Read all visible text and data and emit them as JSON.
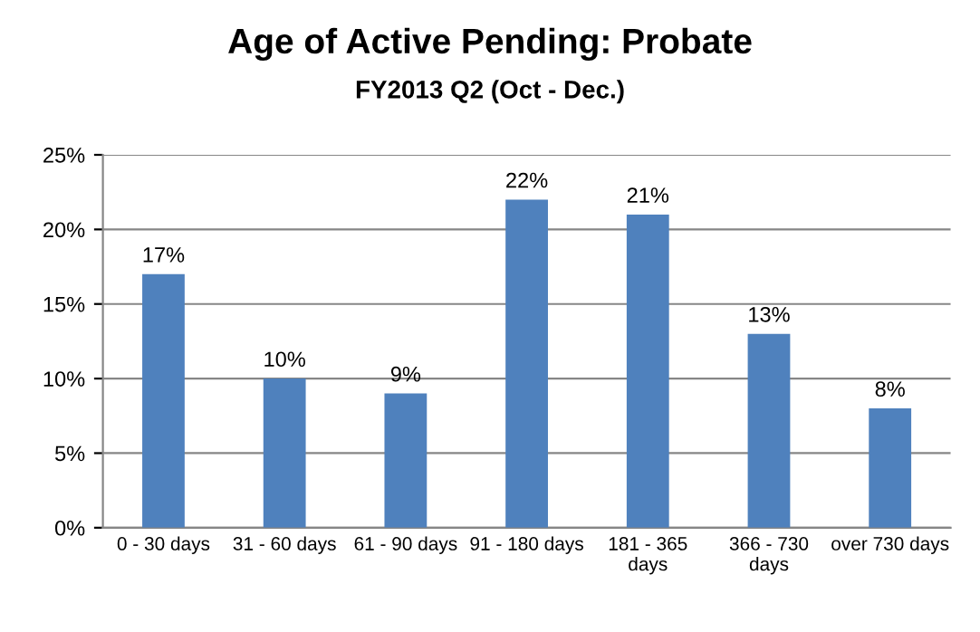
{
  "chart_data": {
    "type": "bar",
    "title": "Age of Active Pending: Probate",
    "subtitle": "FY2013 Q2 (Oct - Dec.)",
    "categories": [
      "0 - 30 days",
      "31 - 60 days",
      "61 - 90 days",
      "91 - 180 days",
      "181 - 365 days",
      "366 - 730 days",
      "over 730 days"
    ],
    "values": [
      17,
      10,
      9,
      22,
      21,
      13,
      8
    ],
    "value_labels": [
      "17%",
      "10%",
      "9%",
      "22%",
      "21%",
      "13%",
      "8%"
    ],
    "color": "#4f81bd",
    "ylim": [
      0,
      25
    ],
    "yticks": [
      {
        "value": 0,
        "label": "0%"
      },
      {
        "value": 5,
        "label": "5%"
      },
      {
        "value": 10,
        "label": "10%"
      },
      {
        "value": 15,
        "label": "15%"
      },
      {
        "value": 20,
        "label": "20%"
      },
      {
        "value": 25,
        "label": "25%"
      }
    ],
    "grid": "y"
  }
}
